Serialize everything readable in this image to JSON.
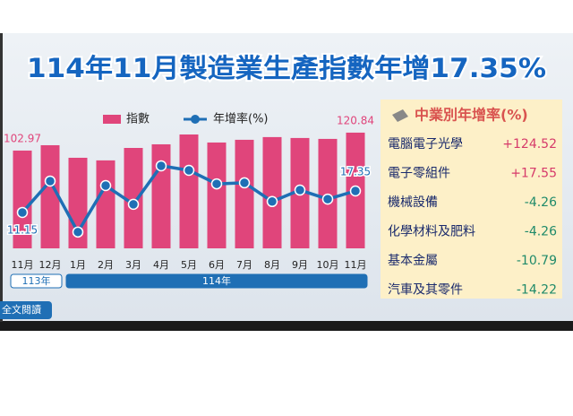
{
  "chart_data": {
    "type": "bar-line",
    "title": "114年11月製造業生產指數年增17.35%",
    "categories": [
      "11月",
      "12月",
      "1月",
      "2月",
      "3月",
      "4月",
      "5月",
      "6月",
      "7月",
      "8月",
      "9月",
      "10月",
      "11月"
    ],
    "year_groups": [
      {
        "label": "113年",
        "count": 2
      },
      {
        "label": "114年",
        "count": 11
      }
    ],
    "series": [
      {
        "name": "指數",
        "color": "#e0457b",
        "values": [
          102.97,
          108.3,
          95.8,
          93.2,
          105.6,
          109.2,
          119.0,
          111.0,
          113.7,
          116.4,
          115.5,
          114.6,
          120.84
        ]
      },
      {
        "name": "年增率(%)",
        "color": "#1f6fb5",
        "axis": "y2",
        "values": [
          11.15,
          20.2,
          5.5,
          18.9,
          13.5,
          24.6,
          23.3,
          19.4,
          19.7,
          14.3,
          17.6,
          15.0,
          17.35
        ]
      }
    ],
    "ylim": [
      5.6,
      130.6
    ],
    "y2lim": [
      0.8,
      37
    ],
    "side_table": {
      "title": "中業別年增率(%)",
      "categories": [
        "電腦電子光學",
        "電子零組件",
        "機械設備",
        "化學材料及肥料",
        "基本金屬",
        "汽車及其零件"
      ],
      "values": [
        124.52,
        17.55,
        -4.26,
        -4.26,
        -10.79,
        -14.22
      ],
      "value_labels": [
        "+124.52",
        "+17.55",
        "-4.26",
        "-4.26",
        "-10.79",
        "-14.22"
      ]
    },
    "button": "全文閱讀"
  }
}
